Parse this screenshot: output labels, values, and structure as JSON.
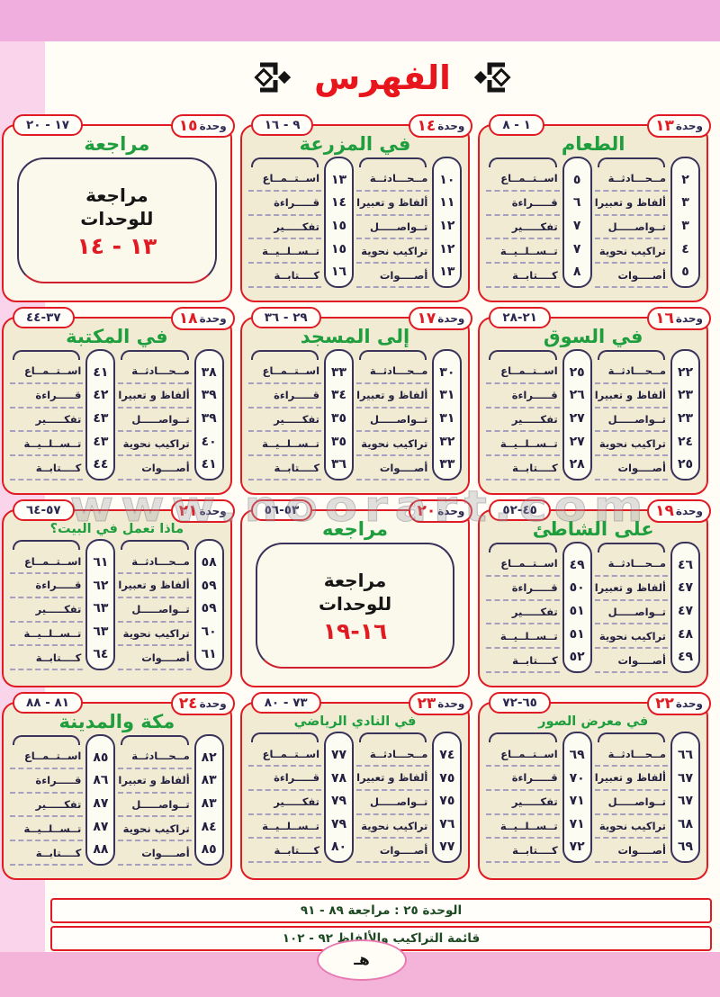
{
  "header": {
    "title": "الفهرس"
  },
  "watermark": "www.noorart.com",
  "labels": {
    "unit_word": "وحدة",
    "skills_right": [
      "مــحـــادثــة",
      "ألفاظ و تعبيرات",
      "تــواصـــــل",
      "تراكيب نحوية",
      "أصــــوات"
    ],
    "skills_left": [
      "اســتــمــاع",
      "قـــــراءة",
      "تفكـــــير",
      "تــســلــيــة",
      "كــــتابــة"
    ]
  },
  "units": [
    {
      "type": "standard",
      "number": "١٣",
      "range": "١ - ٨",
      "title": "الطعام",
      "pages_right": [
        "٢",
        "٣",
        "٣",
        "٤",
        "٥"
      ],
      "pages_left": [
        "٥",
        "٦",
        "٧",
        "٧",
        "٨"
      ]
    },
    {
      "type": "standard",
      "number": "١٤",
      "range": "٩ - ١٦",
      "title": "في المزرعة",
      "pages_right": [
        "١٠",
        "١١",
        "١٢",
        "١٢",
        "١٣"
      ],
      "pages_left": [
        "١٣",
        "١٤",
        "١٥",
        "١٥",
        "١٦"
      ]
    },
    {
      "type": "review",
      "number": "١٥",
      "range": "١٧ - ٢٠",
      "title": "مراجعة",
      "body_line1": "مراجعة",
      "body_line2": "للوحدات",
      "body_range": "١٣ - ١٤"
    },
    {
      "type": "standard",
      "number": "١٦",
      "range": "٢١-٢٨",
      "title": "في السوق",
      "pages_right": [
        "٢٢",
        "٢٣",
        "٢٣",
        "٢٤",
        "٢٥"
      ],
      "pages_left": [
        "٢٥",
        "٢٦",
        "٢٧",
        "٢٧",
        "٢٨"
      ]
    },
    {
      "type": "standard",
      "number": "١٧",
      "range": "٢٩ - ٣٦",
      "title": "إلى المسجد",
      "pages_right": [
        "٣٠",
        "٣١",
        "٣١",
        "٣٢",
        "٣٣"
      ],
      "pages_left": [
        "٣٣",
        "٣٤",
        "٣٥",
        "٣٥",
        "٣٦"
      ]
    },
    {
      "type": "standard",
      "number": "١٨",
      "range": "٣٧-٤٤",
      "title": "في المكتبة",
      "pages_right": [
        "٣٨",
        "٣٩",
        "٣٩",
        "٤٠",
        "٤١"
      ],
      "pages_left": [
        "٤١",
        "٤٢",
        "٤٣",
        "٤٣",
        "٤٤"
      ]
    },
    {
      "type": "standard",
      "number": "١٩",
      "range": "٤٥-٥٢",
      "title": "على الشاطئ",
      "pages_right": [
        "٤٦",
        "٤٧",
        "٤٧",
        "٤٨",
        "٤٩"
      ],
      "pages_left": [
        "٤٩",
        "٥٠",
        "٥١",
        "٥١",
        "٥٢"
      ]
    },
    {
      "type": "review",
      "number": "٢٠",
      "range": "٥٣-٥٦",
      "title": "مراجعه",
      "body_line1": "مراجعة",
      "body_line2": "للوحدات",
      "body_range": "١٦-١٩"
    },
    {
      "type": "standard",
      "number": "٢١",
      "range": "٥٧-٦٤",
      "title": "ماذا تعمل في البيت؟",
      "pages_right": [
        "٥٨",
        "٥٩",
        "٥٩",
        "٦٠",
        "٦١"
      ],
      "pages_left": [
        "٦١",
        "٦٢",
        "٦٣",
        "٦٣",
        "٦٤"
      ]
    },
    {
      "type": "standard",
      "number": "٢٢",
      "range": "٦٥-٧٢",
      "title": "في معرض الصور",
      "pages_right": [
        "٦٦",
        "٦٧",
        "٦٧",
        "٦٨",
        "٦٩"
      ],
      "pages_left": [
        "٦٩",
        "٧٠",
        "٧١",
        "٧١",
        "٧٢"
      ]
    },
    {
      "type": "standard",
      "number": "٢٣",
      "range": "٧٣ - ٨٠",
      "title": "في النادي الرياضي",
      "pages_right": [
        "٧٤",
        "٧٥",
        "٧٥",
        "٧٦",
        "٧٧"
      ],
      "pages_left": [
        "٧٧",
        "٧٨",
        "٧٩",
        "٧٩",
        "٨٠"
      ]
    },
    {
      "type": "standard",
      "number": "٢٤",
      "range": "٨١ - ٨٨",
      "title": "مكة والمدينة",
      "pages_right": [
        "٨٢",
        "٨٣",
        "٨٣",
        "٨٤",
        "٨٥"
      ],
      "pages_left": [
        "٨٥",
        "٨٦",
        "٨٧",
        "٨٧",
        "٨٨"
      ]
    }
  ],
  "footer": {
    "rows": [
      "الوحدة ٢٥ : مراجعة ٨٩ - ٩١",
      "قائمة التراكيب والألفاظ ٩٢ - ١٠٢"
    ],
    "page_marker": "هـ"
  },
  "colors": {
    "accent_red": "#e01b24",
    "title_green": "#1f9e3e",
    "ink_navy": "#23203f",
    "box_cream": "#f1ebd4",
    "margin_pink": "#f4b4da",
    "footer_text_green": "#1d4a22",
    "ellipse_pink": "#e87ab2"
  }
}
